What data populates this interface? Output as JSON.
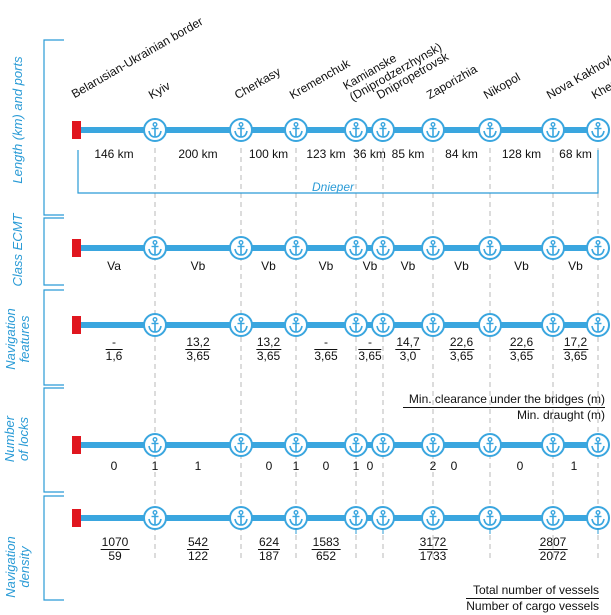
{
  "colors": {
    "river": "#3aa6df",
    "accent": "#2a9bd6",
    "border_marker": "#e0161f",
    "dash": "#b8b8b8"
  },
  "sections": [
    {
      "label": "Length (km) and ports"
    },
    {
      "label": "Class ECMT"
    },
    {
      "label": "Navigation features"
    },
    {
      "label": "Number of locks"
    },
    {
      "label": "Navigation density"
    }
  ],
  "river_name": "Dnieper",
  "ports": [
    {
      "name": "Belarusian-Ukrainian border",
      "icon": "border-marker"
    },
    {
      "name": "Kyiv",
      "icon": "anchor-icon"
    },
    {
      "name": "Cherkasy",
      "icon": "anchor-icon"
    },
    {
      "name": "Kremenchuk",
      "icon": "anchor-icon"
    },
    {
      "name": "Kamianske (Dniprodzerzhynsk)",
      "icon": "anchor-icon"
    },
    {
      "name": "Dnipropetrovsk",
      "icon": "anchor-icon"
    },
    {
      "name": "Zaporizhia",
      "icon": "anchor-icon"
    },
    {
      "name": "Nikopol",
      "icon": "anchor-icon"
    },
    {
      "name": "Nova Kakhovka",
      "icon": "anchor-icon"
    },
    {
      "name": "Kherson",
      "icon": "anchor-icon"
    }
  ],
  "distances": [
    "146 km",
    "200 km",
    "100 km",
    "123 km",
    "36 km",
    "85 km",
    "84 km",
    "128 km",
    "68 km"
  ],
  "ecmt_classes": [
    "Va",
    "Vb",
    "Vb",
    "Vb",
    "Vb",
    "Vb",
    "Vb",
    "Vb",
    "Vb"
  ],
  "navigation_features": [
    {
      "clearance": "-",
      "draught": "1,6"
    },
    {
      "clearance": "13,2",
      "draught": "3,65"
    },
    {
      "clearance": "13,2",
      "draught": "3,65"
    },
    {
      "clearance": "-",
      "draught": "3,65"
    },
    {
      "clearance": "-",
      "draught": "3,65"
    },
    {
      "clearance": "14,7",
      "draught": "3,0"
    },
    {
      "clearance": "22,6",
      "draught": "3,65"
    },
    {
      "clearance": "22,6",
      "draught": "3,65"
    },
    {
      "clearance": "17,2",
      "draught": "3,65"
    }
  ],
  "features_legend": {
    "top": "Min. clearance under the bridges (m)",
    "bottom": "Min. draught (m)"
  },
  "locks": [
    "0",
    "1",
    "1",
    "0",
    "1",
    "0",
    "1",
    "0",
    "2",
    "0",
    "0",
    "1"
  ],
  "density": [
    {
      "total": "1070",
      "cargo": "59"
    },
    {
      "total": "542",
      "cargo": "122"
    },
    {
      "total": "624",
      "cargo": "187"
    },
    {
      "total": "1583",
      "cargo": "652"
    },
    {
      "total": "3172",
      "cargo": "1733"
    },
    {
      "total": "2807",
      "cargo": "2072"
    }
  ],
  "density_legend": {
    "top": "Total number of vessels",
    "bottom": "Number of cargo vessels"
  }
}
